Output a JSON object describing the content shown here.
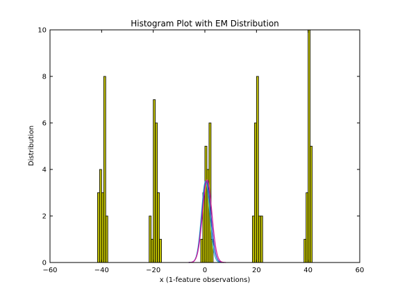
{
  "chart_data": {
    "type": "bar",
    "title": "Histogram Plot with EM Distribution",
    "xlabel": "x (1-feature observations)",
    "ylabel": "Distribution",
    "xlim": [
      -60,
      60
    ],
    "ylim": [
      0,
      10
    ],
    "xticks": [
      "−60",
      "−40",
      "−20",
      "0",
      "20",
      "40",
      "60"
    ],
    "yticks": [
      "0",
      "2",
      "4",
      "6",
      "8",
      "10"
    ],
    "grid": false,
    "bar_color": "#bfbf00",
    "bin_width": 0.8,
    "bins": [
      {
        "x": -41.6,
        "count": 3
      },
      {
        "x": -40.8,
        "count": 4
      },
      {
        "x": -40.0,
        "count": 3
      },
      {
        "x": -39.2,
        "count": 8
      },
      {
        "x": -38.4,
        "count": 2
      },
      {
        "x": -21.6,
        "count": 2
      },
      {
        "x": -20.8,
        "count": 1
      },
      {
        "x": -20.0,
        "count": 7
      },
      {
        "x": -19.2,
        "count": 6
      },
      {
        "x": -18.4,
        "count": 3
      },
      {
        "x": -17.6,
        "count": 1
      },
      {
        "x": -1.6,
        "count": 1
      },
      {
        "x": -0.8,
        "count": 3
      },
      {
        "x": 0.0,
        "count": 5
      },
      {
        "x": 0.8,
        "count": 4
      },
      {
        "x": 1.6,
        "count": 6
      },
      {
        "x": 2.4,
        "count": 1
      },
      {
        "x": 18.4,
        "count": 2
      },
      {
        "x": 19.2,
        "count": 6
      },
      {
        "x": 20.0,
        "count": 8
      },
      {
        "x": 20.8,
        "count": 2
      },
      {
        "x": 21.6,
        "count": 2
      },
      {
        "x": 38.4,
        "count": 1
      },
      {
        "x": 39.2,
        "count": 3
      },
      {
        "x": 40.0,
        "count": 10
      },
      {
        "x": 40.8,
        "count": 5
      }
    ],
    "curves": [
      {
        "mean": 0.3,
        "sd": 1.6,
        "peak": 3.5,
        "color": "#2ab0c8"
      },
      {
        "mean": 0.6,
        "sd": 1.7,
        "peak": 3.5,
        "color": "#3a3ac8"
      },
      {
        "mean": 0.9,
        "sd": 1.8,
        "peak": 3.55,
        "color": "#d0209a"
      }
    ]
  }
}
